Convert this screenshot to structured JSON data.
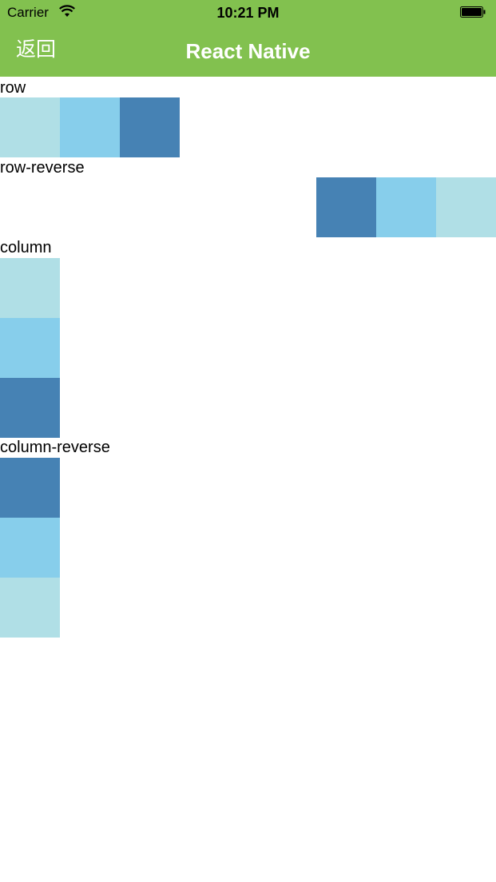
{
  "status_bar": {
    "carrier": "Carrier",
    "time": "10:21 PM",
    "icons": [
      "wifi-icon",
      "battery-icon"
    ]
  },
  "nav": {
    "back_label": "返回",
    "title": "React Native",
    "background_color": "#82c14f"
  },
  "sections": [
    {
      "label": "row",
      "boxes": [
        "lightblue",
        "skyblue",
        "steelblue"
      ]
    },
    {
      "label": "row-reverse",
      "boxes": [
        "steelblue",
        "skyblue",
        "lightblue"
      ]
    },
    {
      "label": "column",
      "boxes": [
        "lightblue",
        "skyblue",
        "steelblue"
      ]
    },
    {
      "label": "column-reverse",
      "boxes": [
        "steelblue",
        "skyblue",
        "lightblue"
      ]
    }
  ],
  "colors": {
    "lightblue": "#b0dfe6",
    "skyblue": "#87ceeb",
    "steelblue": "#4682b4"
  }
}
